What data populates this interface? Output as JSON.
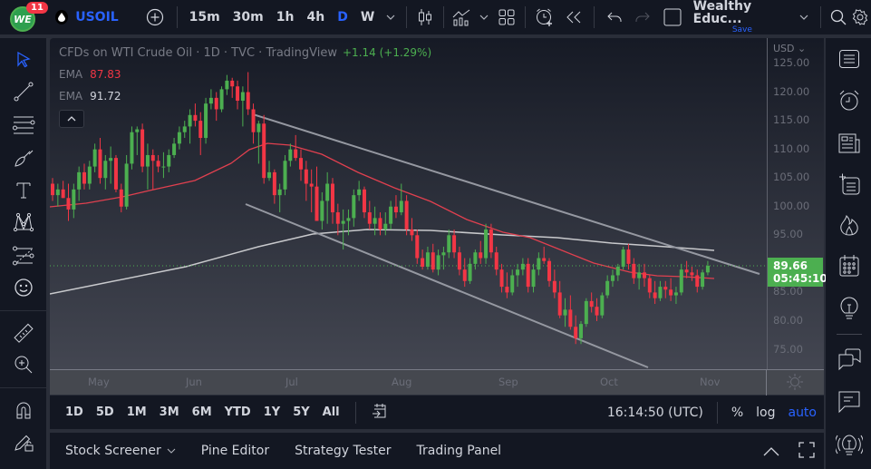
{
  "header": {
    "avatar_initials": "WE",
    "notification_count": "11",
    "symbol": "USOIL",
    "timeframes": [
      "15m",
      "30m",
      "1h",
      "4h",
      "D",
      "W"
    ],
    "active_timeframe": "D",
    "layout_name": "Wealthy Educ...",
    "save_label": "Save",
    "icons": [
      "add-symbol-icon",
      "chevron-down-icon",
      "candles-icon",
      "indicators-icon",
      "chevron-down-icon",
      "layouts-icon",
      "alert-icon",
      "replay-icon",
      "undo-icon",
      "redo-icon",
      "fullscreen-square-icon",
      "chevron-down-icon",
      "search-icon",
      "gear-icon"
    ]
  },
  "chart": {
    "title": "CFDs on WTI Crude Oil · 1D · TVC · TradingView",
    "change": "+1.14 (+1.29%)",
    "legend": [
      {
        "label": "EMA",
        "value": "87.83",
        "color": "#f23645"
      },
      {
        "label": "EMA",
        "value": "91.72",
        "color": "#d1d4dc"
      }
    ],
    "colors": {
      "up": "#4caf50",
      "down": "#f23645",
      "ema_fast": "#e0404f",
      "ema_slow": "#c8c9cc",
      "trendline": "#9598a1",
      "accent": "#2962ff"
    }
  },
  "price_axis": {
    "currency": "USD",
    "labels": [
      "125.00",
      "120.00",
      "115.00",
      "110.00",
      "105.00",
      "100.00",
      "95.00",
      "85.00",
      "80.00",
      "75.00"
    ],
    "last_price": "89.66",
    "countdown": "05:45:10"
  },
  "time_axis": {
    "labels": [
      "May",
      "Jun",
      "Jul",
      "Aug",
      "Sep",
      "Oct",
      "Nov"
    ]
  },
  "range_bar": {
    "ranges": [
      "1D",
      "5D",
      "1M",
      "3M",
      "6M",
      "YTD",
      "1Y",
      "5Y",
      "All"
    ],
    "clock": "16:14:50 (UTC)",
    "percent": "%",
    "log": "log",
    "auto": "auto"
  },
  "bottom_panel": {
    "tabs": [
      "Stock Screener",
      "Pine Editor",
      "Strategy Tester",
      "Trading Panel"
    ]
  },
  "left_toolbar": {
    "tools": [
      "cursor",
      "trendline",
      "fib-retracement",
      "brush",
      "text",
      "pattern",
      "prediction",
      "emoji",
      "ruler",
      "zoom-in",
      "magnet",
      "lock-drawings"
    ]
  },
  "right_toolbar": {
    "tools": [
      "watchlist",
      "alerts",
      "news",
      "object-tree",
      "hotlists",
      "calendar",
      "ideas",
      "chats",
      "comments",
      "idea-stream"
    ]
  },
  "chart_data": {
    "type": "candlestick",
    "title": "CFDs on WTI Crude Oil · 1D · TVC",
    "ylabel": "USD",
    "ylim": [
      72,
      126
    ],
    "x_labels": [
      "May",
      "Jun",
      "Jul",
      "Aug",
      "Sep",
      "Oct",
      "Nov"
    ],
    "last": 89.66,
    "ema_fast_last": 87.83,
    "ema_slow_last": 91.72,
    "channel": {
      "upper": [
        [
          116.2,
          "mid-Jun"
        ],
        [
          86.5,
          "late-Oct"
        ]
      ],
      "lower": [
        [
          100.7,
          "late-Jun"
        ],
        [
          72.5,
          "mid-Oct"
        ]
      ]
    },
    "candles": [
      [
        104,
        105,
        101,
        102
      ],
      [
        102,
        104,
        100,
        103
      ],
      [
        103,
        104.5,
        101.5,
        101.5
      ],
      [
        101.5,
        104,
        97.5,
        99.5
      ],
      [
        99.5,
        104,
        98,
        103
      ],
      [
        103,
        107,
        101,
        106
      ],
      [
        106,
        107.5,
        103,
        104
      ],
      [
        104,
        108,
        103,
        107
      ],
      [
        107,
        111,
        106,
        110
      ],
      [
        110,
        112,
        104,
        105
      ],
      [
        105,
        109,
        103,
        108
      ],
      [
        108,
        110.5,
        104,
        108.5
      ],
      [
        108.5,
        109,
        102.5,
        103
      ],
      [
        103,
        104,
        99,
        100
      ],
      [
        100,
        109,
        99.5,
        107.5
      ],
      [
        107.5,
        114,
        106.5,
        113
      ],
      [
        113,
        114,
        109,
        113.5
      ],
      [
        113.5,
        114.5,
        106,
        107
      ],
      [
        107,
        111,
        103,
        109
      ],
      [
        109,
        110,
        103,
        108
      ],
      [
        108,
        109,
        106,
        107
      ],
      [
        107,
        109.5,
        105,
        107
      ],
      [
        107,
        110,
        106,
        109
      ],
      [
        109,
        112,
        108.5,
        111
      ],
      [
        111,
        114,
        110,
        113
      ],
      [
        113,
        115,
        112,
        114
      ],
      [
        114,
        117,
        111,
        116
      ],
      [
        116,
        118,
        114,
        115
      ],
      [
        115,
        116.5,
        109,
        112
      ],
      [
        112,
        119,
        111,
        118
      ],
      [
        118,
        120.5,
        117,
        119
      ],
      [
        119,
        120,
        115,
        117
      ],
      [
        117,
        121,
        116.5,
        120.5
      ],
      [
        120.5,
        123,
        119.5,
        122
      ],
      [
        122,
        122.5,
        119,
        121
      ],
      [
        121,
        122,
        117,
        118.5
      ],
      [
        118.5,
        121,
        114,
        120
      ],
      [
        120,
        123.5,
        116,
        117
      ],
      [
        117,
        118,
        111,
        113
      ],
      [
        113,
        115,
        107.5,
        114.5
      ],
      [
        114.5,
        116,
        104,
        105
      ],
      [
        105,
        108,
        104.5,
        106
      ],
      [
        106,
        106.5,
        100.5,
        102
      ],
      [
        102,
        104,
        99,
        103
      ],
      [
        103,
        109,
        102,
        108
      ],
      [
        108,
        111,
        107,
        110
      ],
      [
        110,
        112.5,
        108,
        108.5
      ],
      [
        108.5,
        110,
        104.5,
        106.5
      ],
      [
        106.5,
        108,
        101,
        104
      ],
      [
        104,
        106.5,
        99,
        103.5
      ],
      [
        103.5,
        107,
        97.5,
        97.5
      ],
      [
        97.5,
        102.5,
        96,
        101
      ],
      [
        101,
        106,
        97,
        104
      ],
      [
        104,
        105,
        97,
        99
      ],
      [
        99,
        100.5,
        95,
        97
      ],
      [
        97,
        99.5,
        92.5,
        97.5
      ],
      [
        97.5,
        99.5,
        95,
        98
      ],
      [
        98,
        103,
        96.5,
        102
      ],
      [
        102,
        104.5,
        101,
        103
      ],
      [
        103,
        103.5,
        98,
        99
      ],
      [
        99,
        101,
        96,
        97
      ],
      [
        97,
        100,
        95,
        98
      ],
      [
        98,
        99,
        95,
        96
      ],
      [
        96,
        99,
        95,
        97
      ],
      [
        97,
        101,
        96,
        100
      ],
      [
        100,
        102,
        98,
        99
      ],
      [
        99,
        104,
        98.5,
        101
      ],
      [
        101,
        102,
        95,
        96
      ],
      [
        96,
        98,
        94,
        95
      ],
      [
        95,
        96,
        90,
        91
      ],
      [
        91,
        92.5,
        89,
        89.5
      ],
      [
        89.5,
        93,
        89,
        92
      ],
      [
        92,
        93.5,
        88.5,
        89
      ],
      [
        89,
        92.5,
        88,
        91.5
      ],
      [
        91.5,
        93,
        89,
        92
      ],
      [
        92,
        96,
        91,
        95
      ],
      [
        95,
        96,
        91,
        92
      ],
      [
        92,
        93,
        88,
        89
      ],
      [
        89,
        91,
        86,
        87
      ],
      [
        87,
        91,
        86.5,
        90
      ],
      [
        90,
        92.5,
        89,
        92
      ],
      [
        92,
        94,
        90,
        91
      ],
      [
        91,
        97,
        90,
        96
      ],
      [
        96,
        97,
        91,
        92
      ],
      [
        92,
        93,
        88,
        89
      ],
      [
        89,
        90,
        85,
        86
      ],
      [
        86,
        88.5,
        84,
        85
      ],
      [
        85,
        89,
        84.5,
        88
      ],
      [
        88,
        90,
        86,
        89
      ],
      [
        89,
        91,
        88,
        90
      ],
      [
        90,
        91,
        85,
        86
      ],
      [
        86,
        90,
        85,
        89
      ],
      [
        89,
        92,
        88,
        91
      ],
      [
        91,
        93,
        90,
        90.5
      ],
      [
        90.5,
        91,
        86,
        87
      ],
      [
        87,
        89,
        84,
        85
      ],
      [
        85,
        87,
        80.5,
        81
      ],
      [
        81,
        84,
        79,
        82
      ],
      [
        82,
        84.5,
        78.5,
        79
      ],
      [
        79,
        81,
        76,
        77
      ],
      [
        77,
        80,
        76,
        79.5
      ],
      [
        79.5,
        84,
        79,
        83.5
      ],
      [
        83.5,
        85,
        81.5,
        82.5
      ],
      [
        82.5,
        84,
        80,
        81
      ],
      [
        81,
        85,
        80.5,
        84.5
      ],
      [
        84.5,
        88,
        84,
        87
      ],
      [
        87,
        89,
        86,
        88
      ],
      [
        88,
        90,
        87,
        89.5
      ],
      [
        89.5,
        93,
        89,
        92.5
      ],
      [
        92.5,
        93.5,
        89,
        90
      ],
      [
        90,
        91,
        86.5,
        87.5
      ],
      [
        87.5,
        90,
        85.5,
        88.5
      ],
      [
        88.5,
        90,
        86,
        87.5
      ],
      [
        87.5,
        88,
        84,
        85
      ],
      [
        85,
        87,
        83,
        84
      ],
      [
        84,
        87,
        83.5,
        86
      ],
      [
        86,
        87,
        84,
        85.5
      ],
      [
        85.5,
        87.5,
        83.5,
        84.5
      ],
      [
        84.5,
        86,
        83,
        85
      ],
      [
        85,
        90,
        84.5,
        89
      ],
      [
        89,
        90.5,
        87.5,
        88.5
      ],
      [
        88.5,
        89.5,
        87,
        88
      ],
      [
        88,
        89,
        85,
        86
      ],
      [
        86,
        89,
        85.5,
        88.5
      ],
      [
        88.5,
        90.5,
        88,
        89.66
      ]
    ]
  }
}
